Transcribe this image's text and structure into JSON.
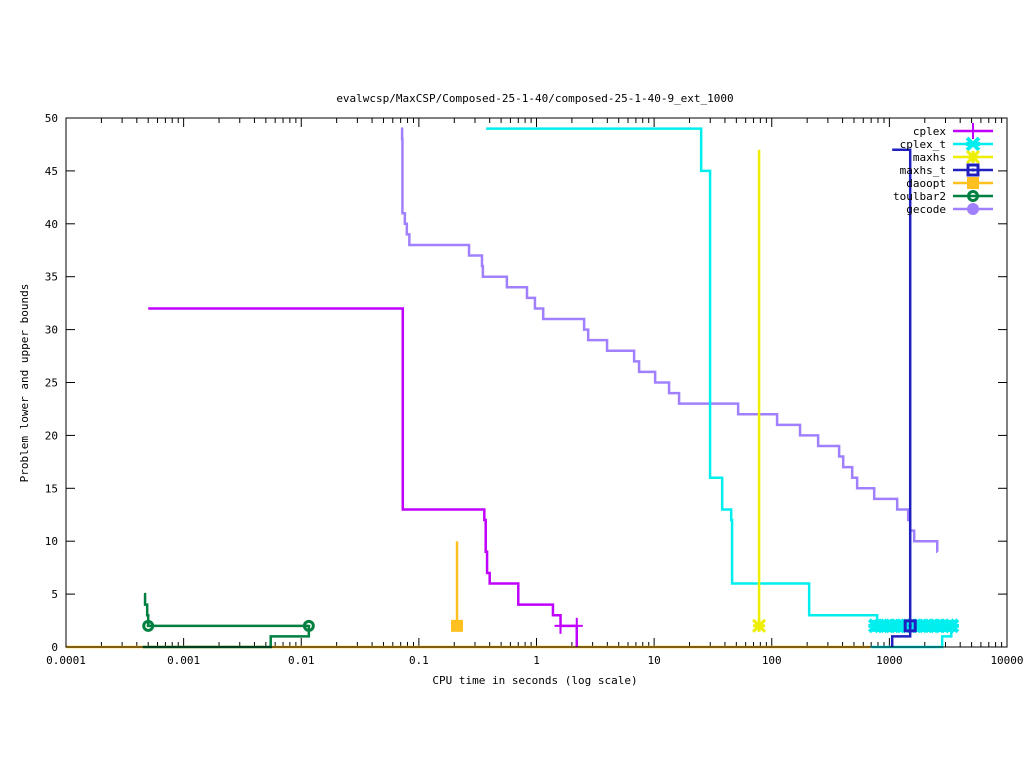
{
  "chart_data": {
    "type": "line",
    "title": "evalwcsp/MaxCSP/Composed-25-1-40/composed-25-1-40-9_ext_1000",
    "xlabel": "CPU time in seconds (log scale)",
    "ylabel": "Problem lower and upper bounds",
    "xscale": "log",
    "xlim": [
      0.0001,
      10000
    ],
    "ylim": [
      0,
      50
    ],
    "xticks": [
      0.0001,
      0.001,
      0.01,
      0.1,
      1,
      10,
      100,
      1000,
      10000
    ],
    "xtick_labels": [
      "0.0001",
      "0.001",
      "0.01",
      "0.1",
      "1",
      "10",
      "100",
      "1000",
      "10000"
    ],
    "yticks": [
      0,
      5,
      10,
      15,
      20,
      25,
      30,
      35,
      40,
      45,
      50
    ],
    "ytick_labels": [
      "0",
      "5",
      "10",
      "15",
      "20",
      "25",
      "30",
      "35",
      "40",
      "45",
      "50"
    ],
    "grid": false,
    "legend_position": "top-right",
    "series": [
      {
        "name": "cplex",
        "color": "#c000ff",
        "marker": "plus",
        "upper": [
          [
            0.0005,
            32
          ],
          [
            0.073,
            13
          ],
          [
            0.36,
            12
          ],
          [
            0.37,
            9
          ],
          [
            0.38,
            7
          ],
          [
            0.4,
            6
          ],
          [
            0.7,
            4
          ],
          [
            1.38,
            3
          ],
          [
            1.6,
            2
          ],
          [
            2.2,
            2
          ]
        ],
        "lower": [
          [
            2.2,
            0
          ],
          [
            2.2,
            2
          ]
        ],
        "markers": [
          [
            1.6,
            2
          ],
          [
            2.2,
            2
          ]
        ]
      },
      {
        "name": "cplex_t",
        "color": "#00eeee",
        "marker": "cross",
        "upper": [
          [
            0.373,
            49
          ],
          [
            25.1,
            45
          ],
          [
            29.9,
            16
          ],
          [
            37.9,
            13
          ],
          [
            45.2,
            12
          ],
          [
            46,
            6
          ],
          [
            208,
            3
          ],
          [
            787,
            2
          ],
          [
            3400,
            2
          ]
        ],
        "lower": [
          [
            700,
            0
          ],
          [
            2810,
            1
          ],
          [
            3360,
            2
          ]
        ],
        "markers": [
          [
            760,
            2
          ],
          [
            850,
            2
          ],
          [
            950,
            2
          ],
          [
            1060,
            2
          ],
          [
            1180,
            2
          ],
          [
            1320,
            2
          ],
          [
            1470,
            2
          ],
          [
            1640,
            2
          ],
          [
            1830,
            2
          ],
          [
            2040,
            2
          ],
          [
            2280,
            2
          ],
          [
            2540,
            2
          ],
          [
            2830,
            2
          ],
          [
            3150,
            2
          ],
          [
            3400,
            2
          ]
        ]
      },
      {
        "name": "maxhs",
        "color": "#eeee00",
        "marker": "star",
        "upper": [
          [
            78,
            47
          ],
          [
            78,
            2
          ]
        ],
        "lower": [],
        "markers": [
          [
            78,
            2
          ]
        ]
      },
      {
        "name": "maxhs_t",
        "color": "#2020c0",
        "marker": "open-square",
        "upper": [
          [
            1057,
            47
          ],
          [
            1503,
            8
          ],
          [
            1503,
            2
          ]
        ],
        "lower": [
          [
            1057,
            0
          ],
          [
            1057,
            1
          ],
          [
            1503,
            2
          ]
        ],
        "markers": [
          [
            1503,
            2
          ]
        ]
      },
      {
        "name": "daoopt",
        "color": "#ffc020",
        "marker": "filled-square",
        "upper": [
          [
            0.211,
            10
          ],
          [
            0.211,
            2
          ]
        ],
        "lower": [
          [
            0.0001,
            0
          ],
          [
            687,
            0
          ]
        ],
        "markers": [
          [
            0.211,
            2
          ]
        ]
      },
      {
        "name": "toulbar2",
        "color": "#008040",
        "marker": "open-circle",
        "upper": [
          [
            0.00046,
            5
          ],
          [
            0.00047,
            4
          ],
          [
            0.00049,
            3
          ],
          [
            0.0005,
            2
          ],
          [
            0.0116,
            2
          ]
        ],
        "lower": [
          [
            0.00045,
            0
          ],
          [
            0.0055,
            1
          ],
          [
            0.0116,
            2
          ]
        ],
        "markers": [
          [
            0.0005,
            2
          ],
          [
            0.0116,
            2
          ]
        ]
      },
      {
        "name": "gecode",
        "color": "#a080ff",
        "marker": "filled-circle",
        "upper": [
          [
            0.0706,
            49
          ],
          [
            0.072,
            48
          ],
          [
            0.0725,
            41
          ],
          [
            0.076,
            40
          ],
          [
            0.079,
            39
          ],
          [
            0.083,
            38
          ],
          [
            0.267,
            37
          ],
          [
            0.344,
            36
          ],
          [
            0.35,
            35
          ],
          [
            0.56,
            34
          ],
          [
            0.83,
            33
          ],
          [
            0.97,
            32
          ],
          [
            1.14,
            31
          ],
          [
            2.54,
            30
          ],
          [
            2.75,
            29
          ],
          [
            3.98,
            28
          ],
          [
            6.76,
            27
          ],
          [
            7.45,
            26
          ],
          [
            10.2,
            25
          ],
          [
            13.4,
            24
          ],
          [
            16.3,
            23
          ],
          [
            51.8,
            22
          ],
          [
            111,
            21
          ],
          [
            174,
            20
          ],
          [
            248,
            19
          ],
          [
            374,
            18
          ],
          [
            405,
            17
          ],
          [
            483,
            16
          ],
          [
            532,
            15
          ],
          [
            743,
            14
          ],
          [
            1165,
            13
          ],
          [
            1445,
            12
          ],
          [
            1503,
            11
          ],
          [
            1625,
            10
          ],
          [
            2553,
            9
          ],
          [
            2560,
            9
          ]
        ],
        "lower": [],
        "markers": []
      }
    ]
  }
}
